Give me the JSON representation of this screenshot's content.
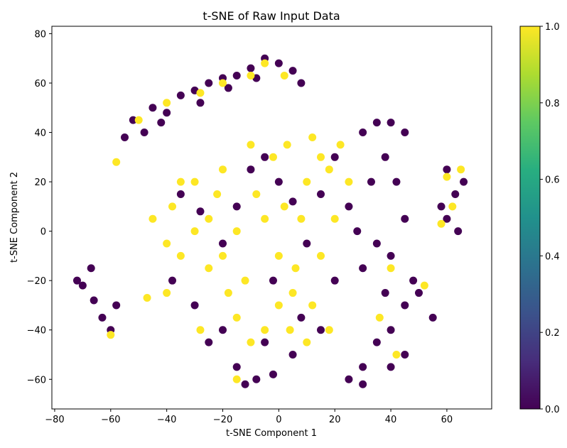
{
  "chart_data": {
    "type": "scatter",
    "title": "t-SNE of Raw Input Data",
    "xlabel": "t-SNE Component 1",
    "ylabel": "t-SNE Component 2",
    "xlim": [
      -81,
      76
    ],
    "ylim": [
      -72,
      83
    ],
    "xticks": [
      -80,
      -60,
      -40,
      -20,
      0,
      20,
      40,
      60
    ],
    "yticks": [
      -60,
      -40,
      -20,
      0,
      20,
      40,
      60,
      80
    ],
    "xtick_labels": [
      "−80",
      "−60",
      "−40",
      "−20",
      "0",
      "20",
      "40",
      "60"
    ],
    "ytick_labels": [
      "−60",
      "−40",
      "−20",
      "0",
      "20",
      "40",
      "60",
      "80"
    ],
    "grid": false,
    "legend": "none",
    "colormap": "viridis",
    "colorbar": {
      "min": 0.0,
      "max": 1.0,
      "ticks": [
        0.0,
        0.2,
        0.4,
        0.6,
        0.8,
        1.0
      ],
      "tick_labels": [
        "0.0",
        "0.2",
        "0.4",
        "0.6",
        "0.8",
        "1.0"
      ],
      "low_color": "#440154",
      "high_color": "#fde725"
    },
    "series": [
      {
        "values_color": 0,
        "points": [
          [
            -70,
            -22
          ],
          [
            -66,
            -28
          ],
          [
            -63,
            -35
          ],
          [
            -60,
            -40
          ],
          [
            -67,
            -15
          ],
          [
            -72,
            -20
          ],
          [
            -58,
            -30
          ],
          [
            -55,
            38
          ],
          [
            -52,
            45
          ],
          [
            -48,
            40
          ],
          [
            -45,
            50
          ],
          [
            -40,
            48
          ],
          [
            -35,
            55
          ],
          [
            -30,
            57
          ],
          [
            -25,
            60
          ],
          [
            -20,
            62
          ],
          [
            -15,
            63
          ],
          [
            -10,
            66
          ],
          [
            -5,
            70
          ],
          [
            0,
            68
          ],
          [
            5,
            65
          ],
          [
            8,
            60
          ],
          [
            -42,
            44
          ],
          [
            -28,
            52
          ],
          [
            -18,
            58
          ],
          [
            -8,
            62
          ],
          [
            -35,
            15
          ],
          [
            -28,
            8
          ],
          [
            -20,
            -5
          ],
          [
            -15,
            10
          ],
          [
            -10,
            25
          ],
          [
            -5,
            30
          ],
          [
            0,
            20
          ],
          [
            5,
            12
          ],
          [
            10,
            -5
          ],
          [
            -2,
            -20
          ],
          [
            8,
            -35
          ],
          [
            15,
            15
          ],
          [
            20,
            30
          ],
          [
            25,
            10
          ],
          [
            30,
            40
          ],
          [
            35,
            44
          ],
          [
            40,
            44
          ],
          [
            45,
            40
          ],
          [
            38,
            30
          ],
          [
            42,
            20
          ],
          [
            45,
            5
          ],
          [
            40,
            -10
          ],
          [
            35,
            -5
          ],
          [
            30,
            -15
          ],
          [
            28,
            0
          ],
          [
            33,
            20
          ],
          [
            -25,
            -45
          ],
          [
            -15,
            -55
          ],
          [
            -8,
            -60
          ],
          [
            -2,
            -58
          ],
          [
            -12,
            -62
          ],
          [
            25,
            -60
          ],
          [
            30,
            -55
          ],
          [
            35,
            -45
          ],
          [
            40,
            -40
          ],
          [
            45,
            -30
          ],
          [
            50,
            -25
          ],
          [
            55,
            -35
          ],
          [
            45,
            -50
          ],
          [
            40,
            -55
          ],
          [
            30,
            -62
          ],
          [
            48,
            -20
          ],
          [
            38,
            -25
          ],
          [
            60,
            25
          ],
          [
            63,
            15
          ],
          [
            60,
            5
          ],
          [
            64,
            0
          ],
          [
            58,
            10
          ],
          [
            66,
            20
          ],
          [
            -38,
            -20
          ],
          [
            -30,
            -30
          ],
          [
            -20,
            -40
          ],
          [
            -5,
            -45
          ],
          [
            5,
            -50
          ],
          [
            15,
            -40
          ],
          [
            20,
            -20
          ]
        ]
      },
      {
        "values_color": 1,
        "points": [
          [
            -45,
            5
          ],
          [
            -40,
            -5
          ],
          [
            -38,
            10
          ],
          [
            -35,
            -10
          ],
          [
            -30,
            0
          ],
          [
            -30,
            20
          ],
          [
            -25,
            -15
          ],
          [
            -22,
            15
          ],
          [
            -20,
            25
          ],
          [
            -18,
            -25
          ],
          [
            -15,
            -35
          ],
          [
            -10,
            -45
          ],
          [
            -5,
            -40
          ],
          [
            -5,
            5
          ],
          [
            -2,
            30
          ],
          [
            0,
            -10
          ],
          [
            3,
            35
          ],
          [
            5,
            -25
          ],
          [
            8,
            5
          ],
          [
            10,
            20
          ],
          [
            12,
            38
          ],
          [
            15,
            -10
          ],
          [
            18,
            25
          ],
          [
            20,
            5
          ],
          [
            22,
            35
          ],
          [
            25,
            20
          ],
          [
            -28,
            -40
          ],
          [
            -20,
            -10
          ],
          [
            -12,
            -20
          ],
          [
            -8,
            15
          ],
          [
            0,
            -30
          ],
          [
            4,
            -40
          ],
          [
            10,
            -45
          ],
          [
            15,
            30
          ],
          [
            -40,
            -25
          ],
          [
            -35,
            20
          ],
          [
            -25,
            5
          ],
          [
            -15,
            0
          ],
          [
            -10,
            35
          ],
          [
            2,
            10
          ],
          [
            6,
            -15
          ],
          [
            12,
            -30
          ],
          [
            18,
            -40
          ],
          [
            -50,
            45
          ],
          [
            -40,
            52
          ],
          [
            -28,
            56
          ],
          [
            -20,
            60
          ],
          [
            -10,
            63
          ],
          [
            -5,
            68
          ],
          [
            2,
            63
          ],
          [
            -58,
            28
          ],
          [
            -47,
            -27
          ],
          [
            40,
            -15
          ],
          [
            36,
            -35
          ],
          [
            42,
            -50
          ],
          [
            52,
            -22
          ],
          [
            60,
            22
          ],
          [
            62,
            10
          ],
          [
            58,
            3
          ],
          [
            65,
            25
          ],
          [
            -60,
            -42
          ],
          [
            -15,
            -60
          ]
        ]
      }
    ]
  }
}
